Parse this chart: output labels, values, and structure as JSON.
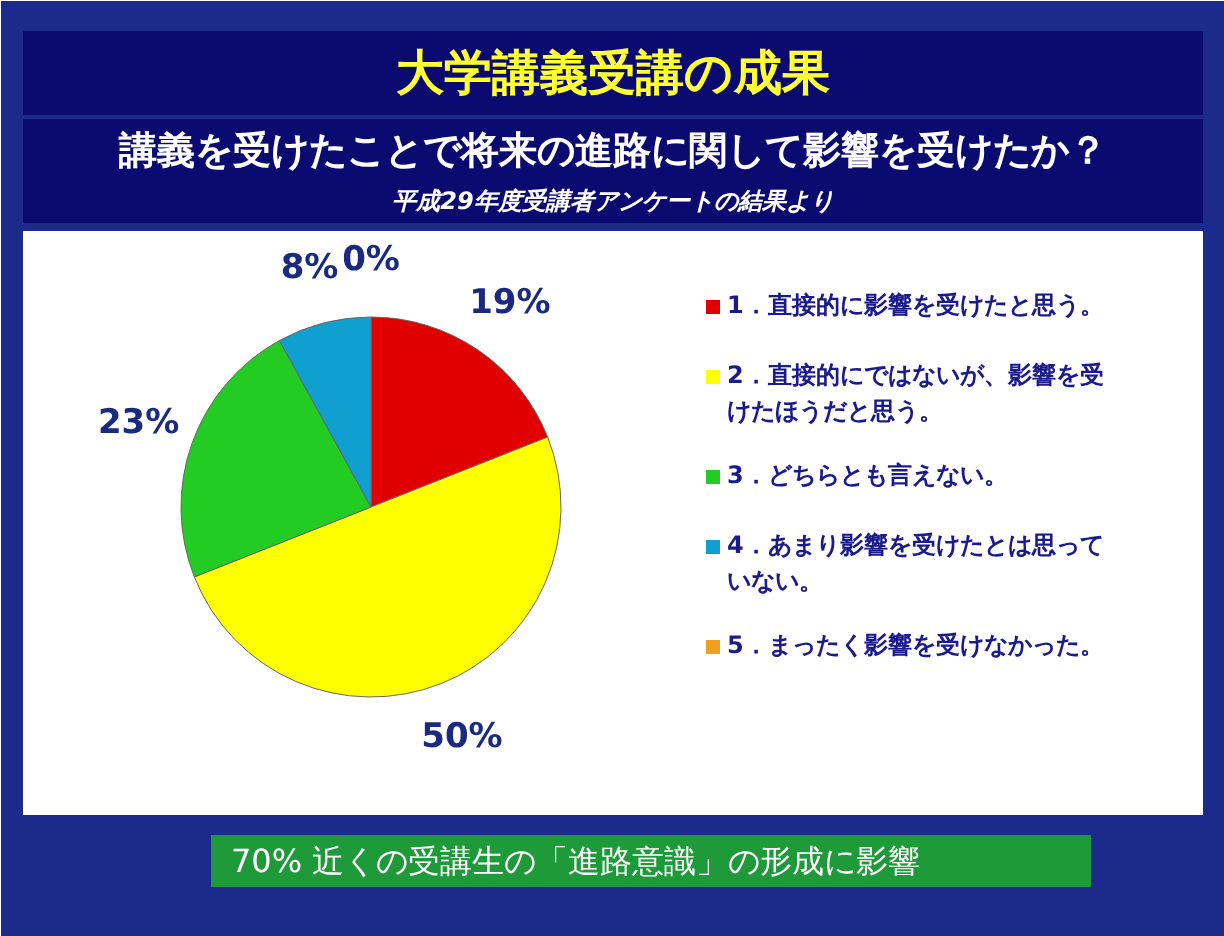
{
  "chart_data": {
    "type": "pie",
    "title": "大学講義受講の成果",
    "subtitle": "講義を受けたことで将来の進路に関して影響を受けたか？",
    "categories": [
      "1．直接的に影響を受けたと思う。",
      "2．直接的にではないが、影響を受けたほうだと思う。",
      "3．どちらとも言えない。",
      "4．あまり影響を受けたとは思っていない。",
      "5．まったく影響を受けなかった。"
    ],
    "values": [
      19,
      50,
      23,
      8,
      0
    ],
    "value_labels": [
      "19%",
      "50%",
      "23%",
      "8%",
      "0%"
    ],
    "colors": [
      "#e00000",
      "#ffff00",
      "#22cc22",
      "#10a0d0",
      "#f0a020"
    ],
    "legend": "right",
    "annotations": [
      "平成29年度受講者アンケートの結果より",
      "70% 近くの受講生の「進路意識」の形成に影響"
    ]
  }
}
